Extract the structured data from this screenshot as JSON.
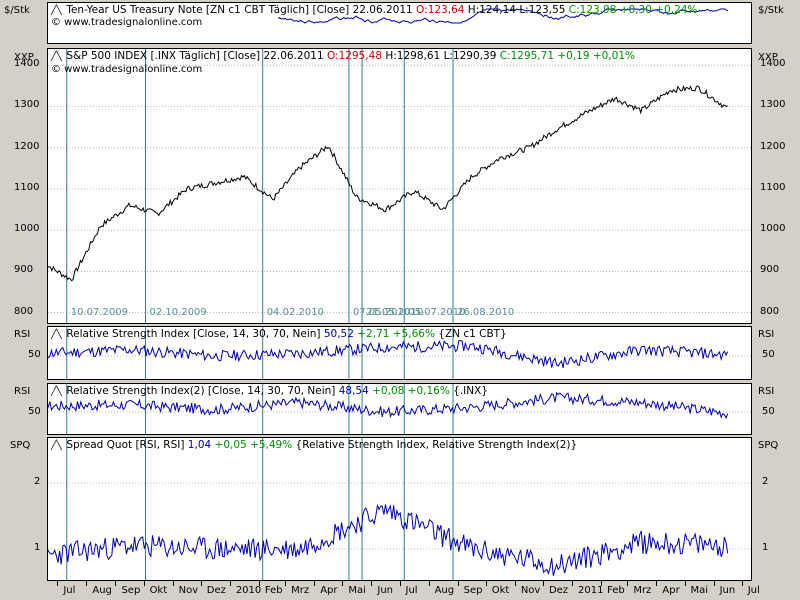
{
  "panels": {
    "treasury": {
      "unit_left": "$/Stk",
      "unit_right": "$/Stk",
      "title": "Ten-Year US Treasury Note [ZN c1 CBT  Täglich] [Close]",
      "date": "22.06.2011",
      "o": "O:123,64",
      "h": "H:124,14",
      "l": "L:123,55",
      "c": "C:123,98 +0,30 +0,24%"
    },
    "sp500": {
      "unit_left": "XXP",
      "unit_right": "XXP",
      "title": "S&P 500 INDEX [.INX  Täglich] [Close]",
      "date": "22.06.2011",
      "o": "O:1295,48",
      "h": "H:1298,61",
      "l": "L:1290,39",
      "c": "C:1295,71 +0,19 +0,01%",
      "credit": "© www.tradesignalonline.com"
    },
    "rsi1": {
      "unit_left": "RSI",
      "unit_right": "RSI",
      "title": "Relative Strength Index [Close, 14, 30, 70, Nein]",
      "value": "50,52",
      "change": "+2,71 +5,66%",
      "source": "{ZN c1 CBT}",
      "tick": "50"
    },
    "rsi2": {
      "unit_left": "RSI",
      "unit_right": "RSI",
      "title": "Relative Strength Index(2) [Close, 14, 30, 70, Nein]",
      "value": "48,54",
      "change": "+0,08 +0,16%",
      "source": "{.INX}",
      "tick": "50"
    },
    "spread": {
      "unit_left": "SPQ",
      "unit_right": "SPQ",
      "title": "Spread Quot [RSI, RSI]",
      "value": "1,04",
      "change": "+0,05 +5,49%",
      "source": "{Relative Strength Index, Relative Strength Index(2)}"
    }
  },
  "credit_top": "© www.tradesignalonline.com",
  "sp_ticks": [
    "1400",
    "1300",
    "1200",
    "1100",
    "1000",
    "900",
    "800"
  ],
  "spq_ticks": [
    "2",
    "1"
  ],
  "marker_dates": [
    "10.07.2009",
    "02.10.2009",
    "04.02.2010",
    "07.05.2010",
    "21.05.2010",
    "05.07.2010",
    "26.08.2010"
  ],
  "marker_date_texts": [
    "10.07.2009",
    "02.10.2009",
    "04.02.2010",
    "07.05.2010",
    "21.05.2010",
    "05.07.2010",
    "26.08.2010"
  ],
  "x_months": [
    "Jul",
    "Aug",
    "Sep",
    "Okt",
    "Nov",
    "Dez",
    "2010",
    "Feb",
    "Mrz",
    "Apr",
    "Mai",
    "Jun",
    "Jul",
    "Aug",
    "Sep",
    "Okt",
    "Nov",
    "Dez",
    "2011",
    "Feb",
    "Mrz",
    "Apr",
    "Mai",
    "Jun",
    "Jul"
  ],
  "colors": {
    "price_line": "#000000",
    "indicator_line": "#0000b0",
    "marker_line": "#2f7f86",
    "grid": "#b8b8b8"
  },
  "chart_data": [
    {
      "type": "line",
      "title": "S&P 500 INDEX [.INX  Täglich] [Close]",
      "ylabel": "XXP",
      "ylim": [
        770,
        1420
      ],
      "x": [
        "2009-06",
        "2009-07",
        "2009-08",
        "2009-09",
        "2009-10",
        "2009-11",
        "2009-12",
        "2010-01",
        "2010-02",
        "2010-03",
        "2010-04",
        "2010-05",
        "2010-06",
        "2010-07",
        "2010-08",
        "2010-09",
        "2010-10",
        "2010-11",
        "2010-12",
        "2011-01",
        "2011-02",
        "2011-03",
        "2011-04",
        "2011-05",
        "2011-06"
      ],
      "series": [
        {
          "values": [
            920,
            880,
            1010,
            1060,
            1040,
            1100,
            1115,
            1130,
            1075,
            1150,
            1205,
            1080,
            1050,
            1095,
            1050,
            1130,
            1175,
            1200,
            1245,
            1285,
            1320,
            1290,
            1340,
            1345,
            1295
          ]
        }
      ]
    },
    {
      "type": "line",
      "title": "Relative Strength Index [Close, 14, 30, 70, Nein]",
      "ylabel": "RSI",
      "ylim": [
        30,
        70
      ],
      "x": [
        "2009-06",
        "2009-09",
        "2009-12",
        "2010-03",
        "2010-06",
        "2010-09",
        "2010-12",
        "2011-03",
        "2011-06"
      ],
      "series": [
        {
          "values": [
            52,
            55,
            50,
            52,
            57,
            58,
            44,
            55,
            51
          ]
        }
      ]
    },
    {
      "type": "line",
      "title": "Relative Strength Index(2) [Close, 14, 30, 70, Nein]",
      "ylabel": "RSI",
      "ylim": [
        30,
        70
      ],
      "x": [
        "2009-06",
        "2009-09",
        "2009-12",
        "2010-03",
        "2010-06",
        "2010-09",
        "2010-12",
        "2011-03",
        "2011-06"
      ],
      "series": [
        {
          "values": [
            55,
            56,
            52,
            58,
            50,
            54,
            62,
            58,
            49
          ]
        }
      ]
    },
    {
      "type": "line",
      "title": "Spread Quot [RSI, RSI]",
      "ylabel": "SPQ",
      "ylim": [
        0.5,
        2.5
      ],
      "x": [
        "2009-06",
        "2009-09",
        "2009-12",
        "2010-03",
        "2010-06",
        "2010-09",
        "2010-12",
        "2011-03",
        "2011-06"
      ],
      "series": [
        {
          "values": [
            0.9,
            1.05,
            1.0,
            1.0,
            1.6,
            1.0,
            0.75,
            1.1,
            1.05
          ]
        }
      ]
    }
  ]
}
